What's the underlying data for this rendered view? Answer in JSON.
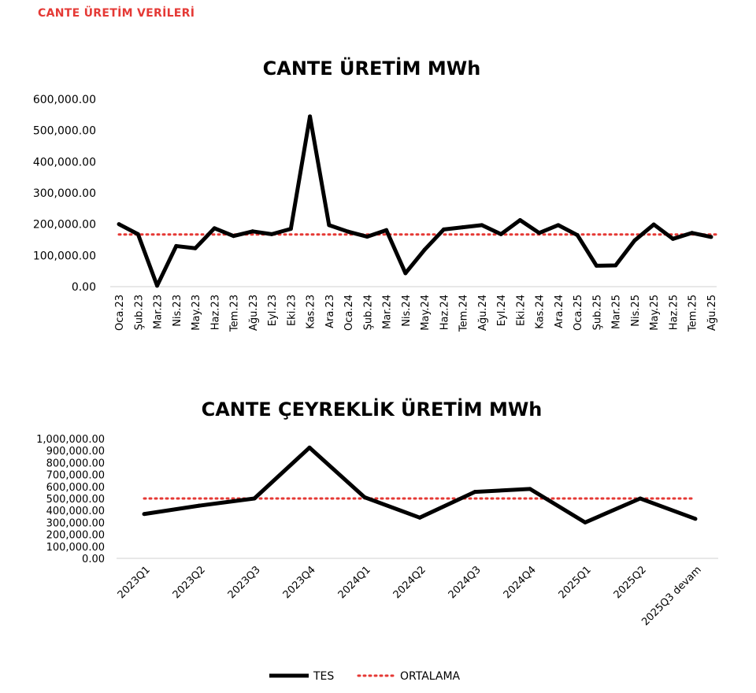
{
  "header": {
    "title": "CANTE ÜRETİM VERİLERİ"
  },
  "colors": {
    "header": "#e53935",
    "tes_line": "#000000",
    "average_line": "#e53935"
  },
  "legend": [
    {
      "label": "TES",
      "style": "solid"
    },
    {
      "label": "ORTALAMA",
      "style": "dotted"
    }
  ],
  "chart_data": [
    {
      "type": "line",
      "title": "CANTE ÜRETİM MWh",
      "xlabel": "",
      "ylabel": "",
      "ylim": [
        0,
        600000
      ],
      "yticks": [
        "0.00",
        "100,000.00",
        "200,000.00",
        "300,000.00",
        "400,000.00",
        "500,000.00",
        "600,000.00"
      ],
      "grid": false,
      "categories": [
        "Oca.23",
        "Şub.23",
        "Mar.23",
        "Nis.23",
        "May.23",
        "Haz.23",
        "Tem.23",
        "Ağu.23",
        "Eyl.23",
        "Eki.23",
        "Kas.23",
        "Ara.23",
        "Oca.24",
        "Şub.24",
        "Mar.24",
        "Nis.24",
        "May.24",
        "Haz.24",
        "Tem.24",
        "Ağu.24",
        "Eyl.24",
        "Eki.24",
        "Kas.24",
        "Ara.24",
        "Oca.25",
        "Şub.25",
        "Mar.25",
        "Nis.25",
        "May.25",
        "Haz.25",
        "Tem.25",
        "Ağu.25"
      ],
      "series": [
        {
          "name": "TES",
          "values": [
            200000,
            168000,
            3000,
            130000,
            123000,
            187000,
            162000,
            177000,
            168000,
            185000,
            545000,
            197000,
            176000,
            160000,
            181000,
            43000,
            118000,
            183000,
            190000,
            197000,
            168000,
            213000,
            172000,
            197000,
            165000,
            67000,
            68000,
            148000,
            199000,
            153000,
            172000,
            159000
          ]
        },
        {
          "name": "ORTALAMA",
          "values": [
            167000,
            167000,
            167000,
            167000,
            167000,
            167000,
            167000,
            167000,
            167000,
            167000,
            167000,
            167000,
            167000,
            167000,
            167000,
            167000,
            167000,
            167000,
            167000,
            167000,
            167000,
            167000,
            167000,
            167000,
            167000,
            167000,
            167000,
            167000,
            167000,
            167000,
            167000,
            167000
          ]
        }
      ]
    },
    {
      "type": "line",
      "title": "CANTE ÇEYREKLİK ÜRETİM MWh",
      "xlabel": "",
      "ylabel": "",
      "ylim": [
        0,
        1000000
      ],
      "yticks": [
        "0.00",
        "100,000.00",
        "200,000.00",
        "300,000.00",
        "400,000.00",
        "500,000.00",
        "600,000.00",
        "700,000.00",
        "800,000.00",
        "900,000.00",
        "1,000,000.00"
      ],
      "grid": false,
      "categories": [
        "2023Q1",
        "2023Q2",
        "2023Q3",
        "2023Q4",
        "2024Q1",
        "2024Q2",
        "2024Q3",
        "2024Q4",
        "2025Q1",
        "2025Q2",
        "2025Q3 devam"
      ],
      "series": [
        {
          "name": "TES",
          "values": [
            370000,
            440000,
            500000,
            925000,
            510000,
            340000,
            555000,
            580000,
            300000,
            500000,
            330000
          ]
        },
        {
          "name": "ORTALAMA",
          "values": [
            500000,
            500000,
            500000,
            500000,
            500000,
            500000,
            500000,
            500000,
            500000,
            500000,
            500000
          ]
        }
      ]
    }
  ]
}
